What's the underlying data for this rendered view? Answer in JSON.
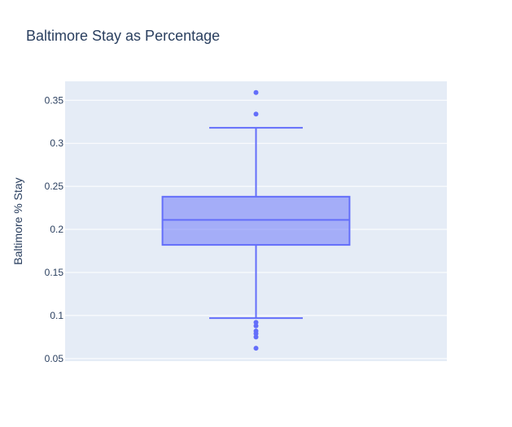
{
  "chart_data": {
    "type": "box",
    "title": "Baltimore Stay as Percentage",
    "xlabel": "",
    "ylabel": "Baltimore % Stay",
    "ylim": [
      0.047,
      0.372
    ],
    "yticks": [
      0.05,
      0.1,
      0.15,
      0.2,
      0.25,
      0.3,
      0.35
    ],
    "ytick_labels": [
      "0.05",
      "0.1",
      "0.15",
      "0.2",
      "0.25",
      "0.3",
      "0.35"
    ],
    "grid": true,
    "legend": "none",
    "series": [
      {
        "q1": 0.182,
        "median": 0.211,
        "q3": 0.238,
        "lower_fence": 0.097,
        "upper_fence": 0.318,
        "outliers": [
          0.359,
          0.334,
          0.092,
          0.088,
          0.082,
          0.079,
          0.075,
          0.062
        ]
      }
    ],
    "colors": {
      "box_line": "#636efa",
      "box_fill": "rgba(99,110,250,0.5)",
      "plot_bg": "#e5ecf6",
      "grid": "#ffffff",
      "text": "#2a3f5f"
    }
  }
}
